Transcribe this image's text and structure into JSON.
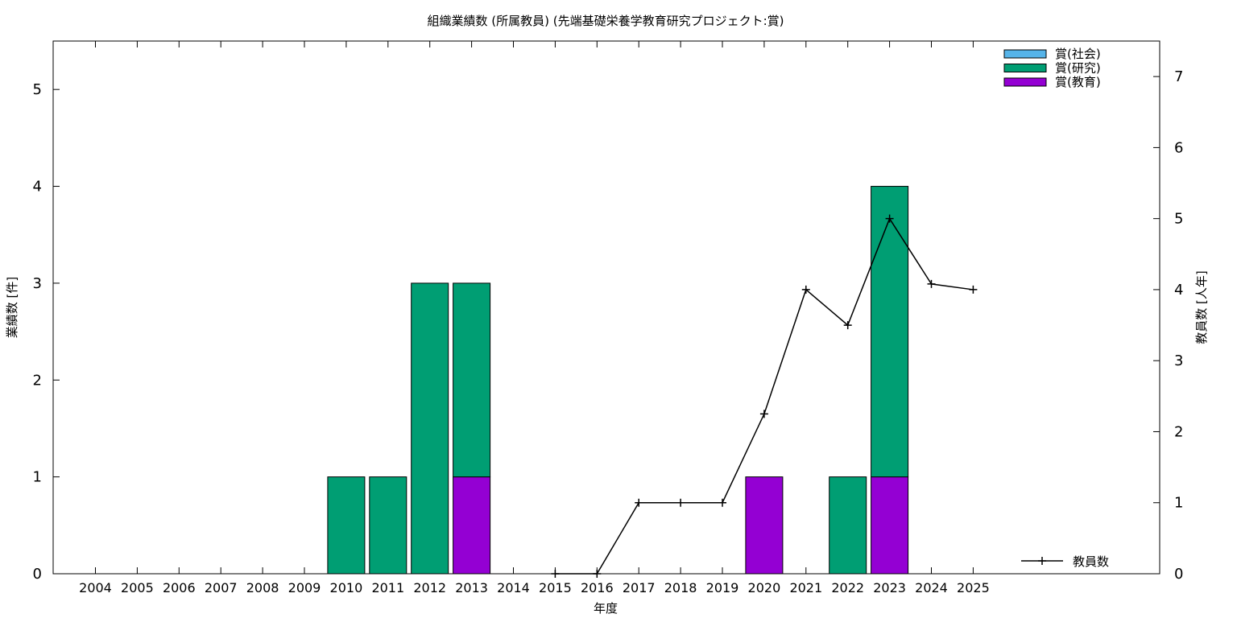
{
  "chart_data": {
    "type": "bar",
    "title": "組織業績数 (所属教員) (先端基礎栄養学教育研究プロジェクト:賞)",
    "xlabel": "年度",
    "ylabel": "業績数 [件]",
    "y2label": "教員数 [人年]",
    "categories": [
      "2004",
      "2005",
      "2006",
      "2007",
      "2008",
      "2009",
      "2010",
      "2011",
      "2012",
      "2013",
      "2014",
      "2015",
      "2016",
      "2017",
      "2018",
      "2019",
      "2020",
      "2021",
      "2022",
      "2023",
      "2024",
      "2025"
    ],
    "ylim": [
      0,
      5.5
    ],
    "y2lim": [
      0,
      7.5
    ],
    "yticks": [
      "0",
      "1",
      "2",
      "3",
      "4",
      "5"
    ],
    "y2ticks": [
      "0",
      "1",
      "2",
      "3",
      "4",
      "5",
      "6",
      "7"
    ],
    "stacked": true,
    "legend_position": "top-right",
    "series": [
      {
        "name": "賞(社会)",
        "color": "#56b4e9",
        "values": [
          0,
          0,
          0,
          0,
          0,
          0,
          0,
          0,
          0,
          0,
          0,
          0,
          0,
          0,
          0,
          0,
          0,
          0,
          0,
          0,
          0,
          0
        ]
      },
      {
        "name": "賞(研究)",
        "color": "#009e73",
        "values": [
          0,
          0,
          0,
          0,
          0,
          0,
          1,
          1,
          3,
          2,
          0,
          0,
          0,
          0,
          0,
          0,
          0,
          0,
          1,
          3,
          0,
          0
        ]
      },
      {
        "name": "賞(教育)",
        "color": "#9400d3",
        "values": [
          0,
          0,
          0,
          0,
          0,
          0,
          0,
          0,
          0,
          1,
          0,
          0,
          0,
          0,
          0,
          0,
          1,
          0,
          0,
          1,
          0,
          0
        ]
      }
    ],
    "line_series": {
      "name": "教員数",
      "axis": "y2",
      "color": "#000000",
      "x": [
        "2015",
        "2016",
        "2017",
        "2018",
        "2019",
        "2020",
        "2021",
        "2022",
        "2023",
        "2024",
        "2025"
      ],
      "values": [
        0,
        0,
        1,
        1,
        1,
        2.25,
        4,
        3.5,
        5,
        4.08,
        4
      ]
    }
  }
}
